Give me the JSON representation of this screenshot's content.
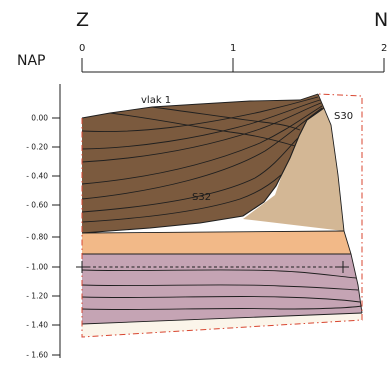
{
  "direction_left": "Z",
  "direction_right": "N",
  "scale_ticks": [
    "0",
    "1",
    "2"
  ],
  "axis_title": "NAP",
  "depth_ticks": [
    "0.00",
    "- 0.20",
    "- 0.40",
    "- 0.60",
    "- 0.80",
    "- 1.00",
    "- 1.20",
    "- 1.40",
    "- 1.60"
  ],
  "labels": {
    "level": "vlak 1",
    "trench_1": "S32",
    "trench_2": "S30"
  },
  "colors": {
    "fill_dark_brown": "#7b5a3e",
    "fill_tan": "#d3b795",
    "fill_orange": "#f2b988",
    "fill_mauve": "#c5a4b4",
    "fill_cream": "#fbf5ea",
    "boundary_red": "#d8452f",
    "line": "#1f1f1f"
  }
}
